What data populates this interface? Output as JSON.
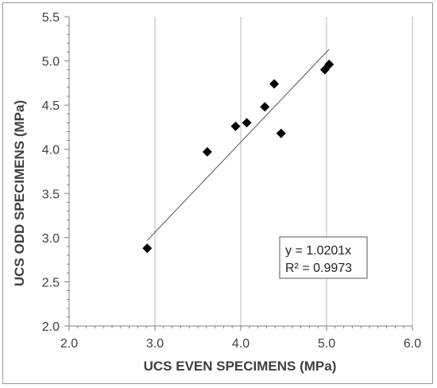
{
  "chart_data": {
    "type": "scatter",
    "xlabel": "UCS EVEN SPECIMENS (MPa)",
    "ylabel": "UCS ODD SPECIMENS (MPa)",
    "xlim": [
      2.0,
      6.0
    ],
    "ylim": [
      2.0,
      5.5
    ],
    "x_ticks": [
      "2.0",
      "3.0",
      "4.0",
      "5.0",
      "6.0"
    ],
    "y_ticks": [
      "2.0",
      "2.5",
      "3.0",
      "3.5",
      "4.0",
      "4.5",
      "5.0",
      "5.5"
    ],
    "x_gridlines": true,
    "y_gridlines": false,
    "marker": "diamond",
    "marker_color": "#000000",
    "points": [
      {
        "x": 2.91,
        "y": 2.88
      },
      {
        "x": 3.61,
        "y": 3.97
      },
      {
        "x": 3.94,
        "y": 4.26
      },
      {
        "x": 4.07,
        "y": 4.3
      },
      {
        "x": 4.28,
        "y": 4.48
      },
      {
        "x": 4.39,
        "y": 4.74
      },
      {
        "x": 4.47,
        "y": 4.18
      },
      {
        "x": 4.98,
        "y": 4.9
      },
      {
        "x": 5.03,
        "y": 4.96
      }
    ],
    "trendline": {
      "slope": 1.0201,
      "intercept": 0,
      "x_range": [
        2.91,
        5.03
      ],
      "equation": "y = 1.0201x",
      "r_squared": "R² = 0.9973"
    }
  }
}
